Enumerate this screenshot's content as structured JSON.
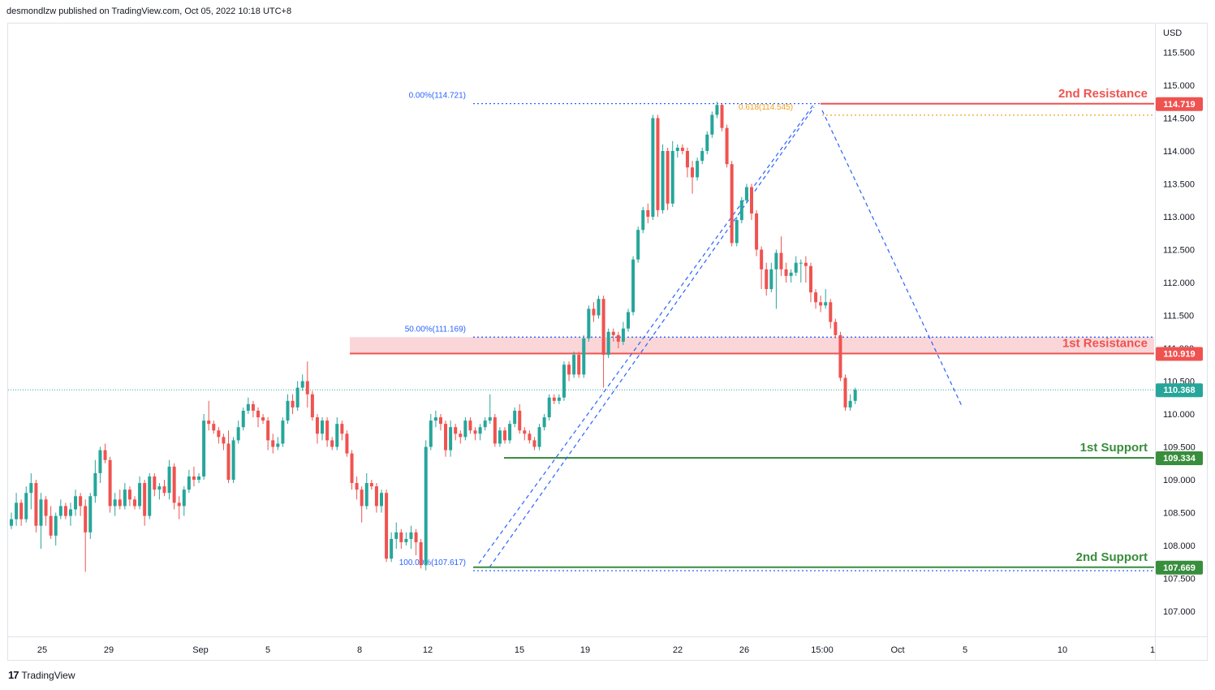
{
  "header": {
    "published": "desmondlzw published on TradingView.com, Oct 05, 2022 10:18 UTC+8"
  },
  "footer": {
    "brand": "TradingView",
    "logo_text": "17"
  },
  "colors": {
    "up": "#26a69a",
    "down": "#ef5350",
    "resistance": "#ef5350",
    "support": "#388e3c",
    "fib": "#2962ff",
    "fib_text": "#2962ff",
    "fib_618": "#f0a020",
    "zone": "#f8c8cc",
    "last_price": "#26a69a"
  },
  "chart_data": {
    "type": "candlestick",
    "symbol_currency": "USD",
    "y_range": [
      106.6,
      116.0
    ],
    "y_ticks": [
      "115.500",
      "115.000",
      "114.500",
      "114.000",
      "113.500",
      "113.000",
      "112.500",
      "112.000",
      "111.500",
      "111.000",
      "110.500",
      "110.000",
      "109.500",
      "109.000",
      "108.500",
      "108.000",
      "107.500",
      "107.000"
    ],
    "x_ticks": [
      "25",
      "29",
      "Sep",
      "5",
      "8",
      "12",
      "15",
      "19",
      "22",
      "26",
      "15:00",
      "Oct",
      "5",
      "10",
      "1"
    ],
    "candles": [
      {
        "o": 108.3,
        "h": 108.5,
        "l": 108.25,
        "c": 108.4
      },
      {
        "o": 108.4,
        "h": 108.8,
        "l": 108.3,
        "c": 108.65
      },
      {
        "o": 108.65,
        "h": 108.7,
        "l": 108.3,
        "c": 108.4
      },
      {
        "o": 108.4,
        "h": 108.9,
        "l": 108.35,
        "c": 108.8
      },
      {
        "o": 108.8,
        "h": 109.1,
        "l": 108.55,
        "c": 108.95
      },
      {
        "o": 108.95,
        "h": 109.0,
        "l": 108.2,
        "c": 108.3
      },
      {
        "o": 108.3,
        "h": 108.8,
        "l": 107.95,
        "c": 108.7
      },
      {
        "o": 108.7,
        "h": 108.75,
        "l": 108.3,
        "c": 108.45
      },
      {
        "o": 108.45,
        "h": 108.6,
        "l": 108.1,
        "c": 108.15
      },
      {
        "o": 108.15,
        "h": 108.5,
        "l": 108.0,
        "c": 108.45
      },
      {
        "o": 108.45,
        "h": 108.7,
        "l": 108.4,
        "c": 108.6
      },
      {
        "o": 108.6,
        "h": 108.65,
        "l": 108.4,
        "c": 108.45
      },
      {
        "o": 108.45,
        "h": 108.65,
        "l": 108.3,
        "c": 108.55
      },
      {
        "o": 108.55,
        "h": 108.85,
        "l": 108.45,
        "c": 108.75
      },
      {
        "o": 108.75,
        "h": 108.8,
        "l": 108.45,
        "c": 108.6
      },
      {
        "o": 108.6,
        "h": 108.7,
        "l": 107.6,
        "c": 108.2
      },
      {
        "o": 108.2,
        "h": 108.8,
        "l": 108.1,
        "c": 108.75
      },
      {
        "o": 108.75,
        "h": 109.3,
        "l": 108.65,
        "c": 109.1
      },
      {
        "o": 109.1,
        "h": 109.5,
        "l": 108.95,
        "c": 109.45
      },
      {
        "o": 109.45,
        "h": 109.55,
        "l": 109.25,
        "c": 109.3
      },
      {
        "o": 109.3,
        "h": 109.35,
        "l": 108.5,
        "c": 108.6
      },
      {
        "o": 108.6,
        "h": 108.8,
        "l": 108.45,
        "c": 108.7
      },
      {
        "o": 108.7,
        "h": 108.85,
        "l": 108.55,
        "c": 108.6
      },
      {
        "o": 108.6,
        "h": 108.95,
        "l": 108.55,
        "c": 108.85
      },
      {
        "o": 108.85,
        "h": 108.9,
        "l": 108.6,
        "c": 108.7
      },
      {
        "o": 108.7,
        "h": 108.75,
        "l": 108.55,
        "c": 108.6
      },
      {
        "o": 108.6,
        "h": 109.05,
        "l": 108.55,
        "c": 108.95
      },
      {
        "o": 108.95,
        "h": 109.0,
        "l": 108.3,
        "c": 108.45
      },
      {
        "o": 108.45,
        "h": 109.1,
        "l": 108.4,
        "c": 109.05
      },
      {
        "o": 109.05,
        "h": 109.1,
        "l": 108.75,
        "c": 108.85
      },
      {
        "o": 108.85,
        "h": 108.95,
        "l": 108.7,
        "c": 108.9
      },
      {
        "o": 108.9,
        "h": 109.0,
        "l": 108.75,
        "c": 108.8
      },
      {
        "o": 108.8,
        "h": 109.3,
        "l": 108.7,
        "c": 109.2
      },
      {
        "o": 109.2,
        "h": 109.25,
        "l": 108.55,
        "c": 108.65
      },
      {
        "o": 108.65,
        "h": 108.75,
        "l": 108.4,
        "c": 108.6
      },
      {
        "o": 108.6,
        "h": 108.9,
        "l": 108.45,
        "c": 108.85
      },
      {
        "o": 108.85,
        "h": 109.15,
        "l": 108.8,
        "c": 109.05
      },
      {
        "o": 109.05,
        "h": 109.2,
        "l": 108.9,
        "c": 109.0
      },
      {
        "o": 109.0,
        "h": 109.1,
        "l": 108.95,
        "c": 109.05
      },
      {
        "o": 109.05,
        "h": 110.0,
        "l": 109.0,
        "c": 109.9
      },
      {
        "o": 109.9,
        "h": 110.2,
        "l": 109.75,
        "c": 109.85
      },
      {
        "o": 109.85,
        "h": 109.9,
        "l": 109.7,
        "c": 109.75
      },
      {
        "o": 109.75,
        "h": 109.8,
        "l": 109.55,
        "c": 109.65
      },
      {
        "o": 109.65,
        "h": 109.7,
        "l": 109.45,
        "c": 109.55
      },
      {
        "o": 109.55,
        "h": 109.75,
        "l": 108.95,
        "c": 109.0
      },
      {
        "o": 109.0,
        "h": 109.65,
        "l": 108.95,
        "c": 109.6
      },
      {
        "o": 109.6,
        "h": 109.9,
        "l": 109.55,
        "c": 109.8
      },
      {
        "o": 109.8,
        "h": 110.1,
        "l": 109.75,
        "c": 110.05
      },
      {
        "o": 110.05,
        "h": 110.25,
        "l": 110.0,
        "c": 110.15
      },
      {
        "o": 110.15,
        "h": 110.2,
        "l": 109.95,
        "c": 110.05
      },
      {
        "o": 110.05,
        "h": 110.1,
        "l": 109.8,
        "c": 109.95
      },
      {
        "o": 109.95,
        "h": 110.0,
        "l": 109.85,
        "c": 109.9
      },
      {
        "o": 109.9,
        "h": 109.95,
        "l": 109.45,
        "c": 109.6
      },
      {
        "o": 109.6,
        "h": 109.7,
        "l": 109.4,
        "c": 109.5
      },
      {
        "o": 109.5,
        "h": 109.65,
        "l": 109.45,
        "c": 109.55
      },
      {
        "o": 109.55,
        "h": 109.95,
        "l": 109.5,
        "c": 109.9
      },
      {
        "o": 109.9,
        "h": 110.3,
        "l": 109.85,
        "c": 110.2
      },
      {
        "o": 110.2,
        "h": 110.3,
        "l": 110.0,
        "c": 110.1
      },
      {
        "o": 110.1,
        "h": 110.5,
        "l": 110.05,
        "c": 110.4
      },
      {
        "o": 110.4,
        "h": 110.6,
        "l": 110.35,
        "c": 110.5
      },
      {
        "o": 110.5,
        "h": 110.8,
        "l": 110.1,
        "c": 110.3
      },
      {
        "o": 110.3,
        "h": 110.35,
        "l": 109.9,
        "c": 109.95
      },
      {
        "o": 109.95,
        "h": 110.0,
        "l": 109.55,
        "c": 109.7
      },
      {
        "o": 109.7,
        "h": 109.95,
        "l": 109.6,
        "c": 109.9
      },
      {
        "o": 109.9,
        "h": 109.95,
        "l": 109.5,
        "c": 109.6
      },
      {
        "o": 109.6,
        "h": 109.65,
        "l": 109.45,
        "c": 109.5
      },
      {
        "o": 109.5,
        "h": 109.95,
        "l": 109.45,
        "c": 109.85
      },
      {
        "o": 109.85,
        "h": 109.9,
        "l": 109.6,
        "c": 109.7
      },
      {
        "o": 109.7,
        "h": 109.75,
        "l": 109.35,
        "c": 109.4
      },
      {
        "o": 109.4,
        "h": 109.45,
        "l": 108.85,
        "c": 108.95
      },
      {
        "o": 108.95,
        "h": 109.05,
        "l": 108.7,
        "c": 108.85
      },
      {
        "o": 108.85,
        "h": 108.9,
        "l": 108.35,
        "c": 108.6
      },
      {
        "o": 108.6,
        "h": 109.1,
        "l": 108.55,
        "c": 108.95
      },
      {
        "o": 108.95,
        "h": 109.0,
        "l": 108.85,
        "c": 108.9
      },
      {
        "o": 108.9,
        "h": 108.95,
        "l": 108.5,
        "c": 108.6
      },
      {
        "o": 108.6,
        "h": 108.85,
        "l": 108.5,
        "c": 108.8
      },
      {
        "o": 108.8,
        "h": 108.85,
        "l": 107.75,
        "c": 107.8
      },
      {
        "o": 107.8,
        "h": 108.2,
        "l": 107.75,
        "c": 108.1
      },
      {
        "o": 108.1,
        "h": 108.35,
        "l": 107.95,
        "c": 108.2
      },
      {
        "o": 108.2,
        "h": 108.25,
        "l": 107.95,
        "c": 108.05
      },
      {
        "o": 108.05,
        "h": 108.2,
        "l": 108.0,
        "c": 108.1
      },
      {
        "o": 108.1,
        "h": 108.3,
        "l": 107.95,
        "c": 108.2
      },
      {
        "o": 108.2,
        "h": 108.25,
        "l": 107.85,
        "c": 108.05
      },
      {
        "o": 108.05,
        "h": 108.1,
        "l": 107.65,
        "c": 107.7
      },
      {
        "o": 107.7,
        "h": 109.6,
        "l": 107.62,
        "c": 109.5
      },
      {
        "o": 109.5,
        "h": 110.0,
        "l": 109.45,
        "c": 109.9
      },
      {
        "o": 109.9,
        "h": 110.05,
        "l": 109.8,
        "c": 109.95
      },
      {
        "o": 109.95,
        "h": 110.0,
        "l": 109.75,
        "c": 109.85
      },
      {
        "o": 109.85,
        "h": 109.9,
        "l": 109.35,
        "c": 109.45
      },
      {
        "o": 109.45,
        "h": 109.9,
        "l": 109.35,
        "c": 109.8
      },
      {
        "o": 109.8,
        "h": 109.85,
        "l": 109.6,
        "c": 109.7
      },
      {
        "o": 109.7,
        "h": 109.75,
        "l": 109.55,
        "c": 109.65
      },
      {
        "o": 109.65,
        "h": 109.95,
        "l": 109.6,
        "c": 109.9
      },
      {
        "o": 109.9,
        "h": 109.95,
        "l": 109.7,
        "c": 109.75
      },
      {
        "o": 109.75,
        "h": 109.8,
        "l": 109.6,
        "c": 109.7
      },
      {
        "o": 109.7,
        "h": 109.85,
        "l": 109.6,
        "c": 109.8
      },
      {
        "o": 109.8,
        "h": 109.95,
        "l": 109.75,
        "c": 109.9
      },
      {
        "o": 109.9,
        "h": 110.3,
        "l": 109.85,
        "c": 109.95
      },
      {
        "o": 109.95,
        "h": 110.0,
        "l": 109.5,
        "c": 109.55
      },
      {
        "o": 109.55,
        "h": 109.8,
        "l": 109.5,
        "c": 109.75
      },
      {
        "o": 109.75,
        "h": 109.8,
        "l": 109.55,
        "c": 109.6
      },
      {
        "o": 109.6,
        "h": 109.9,
        "l": 109.55,
        "c": 109.85
      },
      {
        "o": 109.85,
        "h": 110.1,
        "l": 109.8,
        "c": 110.05
      },
      {
        "o": 110.05,
        "h": 110.15,
        "l": 109.7,
        "c": 109.75
      },
      {
        "o": 109.75,
        "h": 109.8,
        "l": 109.6,
        "c": 109.7
      },
      {
        "o": 109.7,
        "h": 109.75,
        "l": 109.55,
        "c": 109.6
      },
      {
        "o": 109.6,
        "h": 109.65,
        "l": 109.45,
        "c": 109.5
      },
      {
        "o": 109.5,
        "h": 109.85,
        "l": 109.45,
        "c": 109.8
      },
      {
        "o": 109.8,
        "h": 110.0,
        "l": 109.75,
        "c": 109.95
      },
      {
        "o": 109.95,
        "h": 110.3,
        "l": 109.9,
        "c": 110.25
      },
      {
        "o": 110.25,
        "h": 110.3,
        "l": 110.15,
        "c": 110.2
      },
      {
        "o": 110.2,
        "h": 110.3,
        "l": 110.15,
        "c": 110.25
      },
      {
        "o": 110.25,
        "h": 110.8,
        "l": 110.2,
        "c": 110.75
      },
      {
        "o": 110.75,
        "h": 110.8,
        "l": 110.5,
        "c": 110.6
      },
      {
        "o": 110.6,
        "h": 110.95,
        "l": 110.55,
        "c": 110.9
      },
      {
        "o": 110.9,
        "h": 110.95,
        "l": 110.55,
        "c": 110.6
      },
      {
        "o": 110.6,
        "h": 111.2,
        "l": 110.55,
        "c": 111.15
      },
      {
        "o": 111.15,
        "h": 111.65,
        "l": 111.1,
        "c": 111.6
      },
      {
        "o": 111.6,
        "h": 111.7,
        "l": 111.4,
        "c": 111.5
      },
      {
        "o": 111.5,
        "h": 111.8,
        "l": 111.45,
        "c": 111.75
      },
      {
        "o": 111.75,
        "h": 111.8,
        "l": 110.4,
        "c": 110.9
      },
      {
        "o": 110.9,
        "h": 111.3,
        "l": 110.85,
        "c": 111.25
      },
      {
        "o": 111.25,
        "h": 111.3,
        "l": 111.1,
        "c": 111.2
      },
      {
        "o": 111.2,
        "h": 111.25,
        "l": 111.0,
        "c": 111.1
      },
      {
        "o": 111.1,
        "h": 111.4,
        "l": 111.05,
        "c": 111.3
      },
      {
        "o": 111.3,
        "h": 111.6,
        "l": 111.25,
        "c": 111.55
      },
      {
        "o": 111.55,
        "h": 112.4,
        "l": 111.5,
        "c": 112.35
      },
      {
        "o": 112.35,
        "h": 112.85,
        "l": 112.3,
        "c": 112.8
      },
      {
        "o": 112.8,
        "h": 113.15,
        "l": 112.75,
        "c": 113.1
      },
      {
        "o": 113.1,
        "h": 113.2,
        "l": 112.9,
        "c": 113.0
      },
      {
        "o": 113.0,
        "h": 114.55,
        "l": 112.95,
        "c": 114.5
      },
      {
        "o": 114.5,
        "h": 114.55,
        "l": 113.0,
        "c": 113.1
      },
      {
        "o": 113.1,
        "h": 114.1,
        "l": 113.05,
        "c": 114.0
      },
      {
        "o": 114.0,
        "h": 114.05,
        "l": 113.1,
        "c": 113.2
      },
      {
        "o": 113.2,
        "h": 114.15,
        "l": 113.15,
        "c": 114.0
      },
      {
        "o": 114.0,
        "h": 114.1,
        "l": 113.9,
        "c": 114.05
      },
      {
        "o": 114.05,
        "h": 114.1,
        "l": 113.95,
        "c": 114.0
      },
      {
        "o": 114.0,
        "h": 114.05,
        "l": 113.6,
        "c": 113.75
      },
      {
        "o": 113.75,
        "h": 113.85,
        "l": 113.35,
        "c": 113.6
      },
      {
        "o": 113.6,
        "h": 113.9,
        "l": 113.55,
        "c": 113.85
      },
      {
        "o": 113.85,
        "h": 114.05,
        "l": 113.8,
        "c": 114.0
      },
      {
        "o": 114.0,
        "h": 114.3,
        "l": 113.95,
        "c": 114.25
      },
      {
        "o": 114.25,
        "h": 114.6,
        "l": 114.2,
        "c": 114.55
      },
      {
        "o": 114.55,
        "h": 114.75,
        "l": 114.5,
        "c": 114.7
      },
      {
        "o": 114.7,
        "h": 114.72,
        "l": 114.3,
        "c": 114.35
      },
      {
        "o": 114.35,
        "h": 114.4,
        "l": 113.75,
        "c": 113.8
      },
      {
        "o": 113.8,
        "h": 113.85,
        "l": 112.55,
        "c": 112.6
      },
      {
        "o": 112.6,
        "h": 113.0,
        "l": 112.55,
        "c": 112.95
      },
      {
        "o": 112.95,
        "h": 113.3,
        "l": 112.9,
        "c": 113.25
      },
      {
        "o": 113.25,
        "h": 113.5,
        "l": 113.2,
        "c": 113.45
      },
      {
        "o": 113.45,
        "h": 113.5,
        "l": 112.95,
        "c": 113.05
      },
      {
        "o": 113.05,
        "h": 113.1,
        "l": 112.4,
        "c": 112.5
      },
      {
        "o": 112.5,
        "h": 112.55,
        "l": 111.9,
        "c": 112.2
      },
      {
        "o": 112.2,
        "h": 112.3,
        "l": 111.8,
        "c": 111.9
      },
      {
        "o": 111.9,
        "h": 112.3,
        "l": 111.85,
        "c": 112.2
      },
      {
        "o": 112.2,
        "h": 112.5,
        "l": 111.6,
        "c": 112.45
      },
      {
        "o": 112.45,
        "h": 112.7,
        "l": 112.1,
        "c": 112.2
      },
      {
        "o": 112.2,
        "h": 112.3,
        "l": 112.0,
        "c": 112.1
      },
      {
        "o": 112.1,
        "h": 112.2,
        "l": 112.0,
        "c": 112.15
      },
      {
        "o": 112.15,
        "h": 112.4,
        "l": 112.1,
        "c": 112.3
      },
      {
        "o": 112.3,
        "h": 112.35,
        "l": 112.0,
        "c": 112.3
      },
      {
        "o": 112.3,
        "h": 112.4,
        "l": 112.0,
        "c": 112.25
      },
      {
        "o": 112.25,
        "h": 112.3,
        "l": 111.7,
        "c": 111.85
      },
      {
        "o": 111.85,
        "h": 111.9,
        "l": 111.6,
        "c": 111.7
      },
      {
        "o": 111.7,
        "h": 111.8,
        "l": 111.55,
        "c": 111.65
      },
      {
        "o": 111.65,
        "h": 111.9,
        "l": 111.6,
        "c": 111.7
      },
      {
        "o": 111.7,
        "h": 111.75,
        "l": 111.3,
        "c": 111.4
      },
      {
        "o": 111.4,
        "h": 111.45,
        "l": 111.15,
        "c": 111.2
      },
      {
        "o": 111.2,
        "h": 111.25,
        "l": 110.5,
        "c": 110.55
      },
      {
        "o": 110.55,
        "h": 110.6,
        "l": 110.05,
        "c": 110.1
      },
      {
        "o": 110.1,
        "h": 110.3,
        "l": 110.05,
        "c": 110.2
      },
      {
        "o": 110.2,
        "h": 110.4,
        "l": 110.15,
        "c": 110.37
      }
    ],
    "levels": [
      {
        "label": "2nd Resistance",
        "price": 114.719,
        "price_label": "114.719",
        "color": "#ef5350",
        "kind": "resistance"
      },
      {
        "label": "1st Resistance",
        "price": 110.919,
        "price_label": "110.919",
        "color": "#ef5350",
        "kind": "resistance"
      },
      {
        "label": "1st Support",
        "price": 109.334,
        "price_label": "109.334",
        "color": "#388e3c",
        "kind": "support"
      },
      {
        "label": "2nd Support",
        "price": 107.669,
        "price_label": "107.669",
        "color": "#388e3c",
        "kind": "support"
      }
    ],
    "last_price": {
      "price": 110.368,
      "label": "110.368"
    },
    "resistance_zone": [
      110.919,
      111.169
    ],
    "fib_levels": [
      {
        "label": "0.00%(114.721)",
        "price": 114.721,
        "color": "#2962ff"
      },
      {
        "label": "0.618(114.545)",
        "price": 114.545,
        "color": "#f0a020"
      },
      {
        "label": "50.00%(111.169)",
        "price": 111.169,
        "color": "#2962ff"
      },
      {
        "label": "100.00%(107.617)",
        "price": 107.617,
        "color": "#2962ff"
      }
    ]
  }
}
